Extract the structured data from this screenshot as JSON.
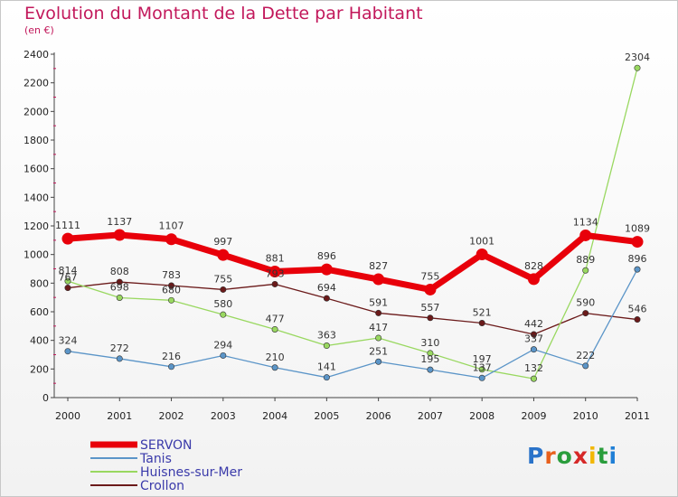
{
  "title": "Evolution du Montant de la Dette par Habitant",
  "subtitle": "(en €)",
  "logo": {
    "text": "Proxiti",
    "letter_colors": [
      "#2a73c9",
      "#e8601c",
      "#2a9d3c",
      "#d62828",
      "#f2b705",
      "#2a9d3c",
      "#1f7fd6"
    ]
  },
  "chart_data": {
    "type": "line",
    "x": [
      "2000",
      "2001",
      "2002",
      "2003",
      "2004",
      "2005",
      "2006",
      "2007",
      "2008",
      "2009",
      "2010",
      "2011"
    ],
    "ylim": [
      0,
      2400
    ],
    "yticks": [
      0,
      200,
      400,
      600,
      800,
      1000,
      1200,
      1400,
      1600,
      1800,
      2000,
      2200,
      2400
    ],
    "grid": false,
    "legend": "bottom-left",
    "series": [
      {
        "name": "Crollon",
        "color": "#6b1a1a",
        "width": 1.3,
        "values": [
          767,
          808,
          783,
          755,
          793,
          694,
          591,
          557,
          521,
          442,
          590,
          546
        ]
      },
      {
        "name": "Huisnes-sur-Mer",
        "color": "#99d860",
        "width": 1.3,
        "values": [
          814,
          698,
          680,
          580,
          477,
          363,
          417,
          310,
          197,
          132,
          889,
          2304
        ]
      },
      {
        "name": "Tanis",
        "color": "#5b95c8",
        "width": 1.3,
        "values": [
          324,
          272,
          216,
          294,
          210,
          141,
          251,
          195,
          137,
          337,
          222,
          896
        ]
      },
      {
        "name": "SERVON",
        "color": "#e8000a",
        "width": 7,
        "values": [
          1111,
          1137,
          1107,
          997,
          881,
          896,
          827,
          755,
          1001,
          828,
          1134,
          1089
        ]
      }
    ],
    "legend_order": [
      "SERVON",
      "Tanis",
      "Huisnes-sur-Mer",
      "Crollon"
    ]
  }
}
